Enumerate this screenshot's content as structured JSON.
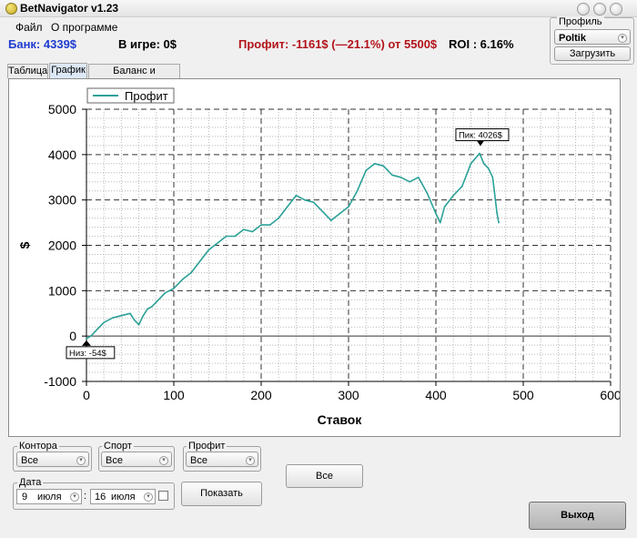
{
  "window": {
    "title": "BetNavigator v1.23"
  },
  "menu": {
    "items": [
      "Файл",
      "О программе"
    ]
  },
  "stats": {
    "bank": "Банк: 4339$",
    "in_game": "В игре: 0$",
    "profit": "Профит: -1161$ (—21.1%) от 5500$",
    "roi": "ROI : 6.16%"
  },
  "profile": {
    "legend": "Профиль",
    "selected": "Poltik",
    "load_label": "Загрузить"
  },
  "tabs": [
    {
      "label": "Таблица",
      "active": false
    },
    {
      "label": "График",
      "active": true
    },
    {
      "label": "Баланс и Статистика",
      "active": false
    }
  ],
  "chart_data": {
    "type": "line",
    "xlabel": "Ставок",
    "ylabel": "$",
    "xlim": [
      0,
      600
    ],
    "ylim": [
      -1000,
      5000
    ],
    "x_ticks": [
      0,
      100,
      200,
      300,
      400,
      500,
      600
    ],
    "y_ticks": [
      -1000,
      0,
      1000,
      2000,
      3000,
      4000,
      5000
    ],
    "grid": true,
    "legend_position": "top-left",
    "series": [
      {
        "name": "Профит",
        "color": "#2aa198",
        "x": [
          0,
          5,
          10,
          20,
          30,
          40,
          50,
          55,
          60,
          65,
          70,
          75,
          80,
          90,
          100,
          110,
          120,
          130,
          140,
          150,
          160,
          170,
          180,
          190,
          200,
          210,
          220,
          230,
          240,
          250,
          260,
          270,
          280,
          290,
          300,
          310,
          320,
          330,
          340,
          350,
          360,
          370,
          380,
          390,
          400,
          405,
          410,
          420,
          430,
          440,
          450,
          455,
          460,
          465,
          470,
          472
        ],
        "y": [
          -54,
          0,
          100,
          300,
          400,
          450,
          500,
          350,
          250,
          450,
          600,
          650,
          750,
          950,
          1050,
          1250,
          1400,
          1650,
          1900,
          2050,
          2200,
          2200,
          2350,
          2300,
          2450,
          2450,
          2600,
          2850,
          3100,
          3000,
          2950,
          2750,
          2550,
          2700,
          2850,
          3200,
          3650,
          3800,
          3750,
          3550,
          3500,
          3400,
          3500,
          3150,
          2700,
          2500,
          2850,
          3100,
          3300,
          3800,
          4026,
          3800,
          3700,
          3500,
          2700,
          2500
        ]
      }
    ],
    "annotations": [
      {
        "text": "Пик: 4026$",
        "x": 451,
        "y": 4026
      },
      {
        "text": "Низ: -54$",
        "x": 0,
        "y": -54
      }
    ]
  },
  "filters": {
    "kontora": {
      "legend": "Контора",
      "value": "Все"
    },
    "sport": {
      "legend": "Спорт",
      "value": "Все"
    },
    "profit": {
      "legend": "Профит",
      "value": "Все"
    },
    "date": {
      "legend": "Дата",
      "from_day": "9",
      "from_month": "июля",
      "separator": ":",
      "to_day": "16",
      "to_month": "июля"
    },
    "all_button": "Все",
    "show_button": "Показать"
  },
  "exit_button": "Выход"
}
